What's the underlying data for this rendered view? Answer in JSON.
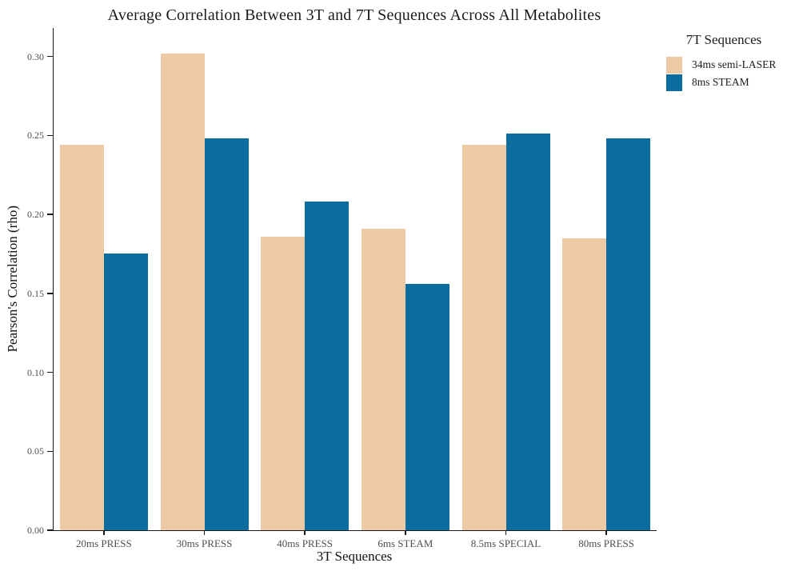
{
  "chart_data": {
    "type": "bar",
    "title": "Average Correlation Between 3T and 7T Sequences Across All Metabolites",
    "xlabel": "3T Sequences",
    "ylabel": "Pearson's Correlation (rho)",
    "categories": [
      "20ms PRESS",
      "30ms PRESS",
      "40ms PRESS",
      "6ms STEAM",
      "8.5ms SPECIAL",
      "80ms PRESS"
    ],
    "series": [
      {
        "name": "34ms semi-LASER",
        "color": "#eccaa6",
        "values": [
          0.244,
          0.302,
          0.186,
          0.191,
          0.244,
          0.185
        ]
      },
      {
        "name": "8ms STEAM",
        "color": "#0a6d9e",
        "values": [
          0.175,
          0.248,
          0.208,
          0.156,
          0.251,
          0.248
        ]
      }
    ],
    "legend": {
      "title": "7T Sequences",
      "position": "right"
    },
    "yticks": [
      "0.00",
      "0.05",
      "0.10",
      "0.15",
      "0.20",
      "0.25",
      "0.30"
    ],
    "ylim": [
      0,
      0.318
    ],
    "grid": false
  }
}
